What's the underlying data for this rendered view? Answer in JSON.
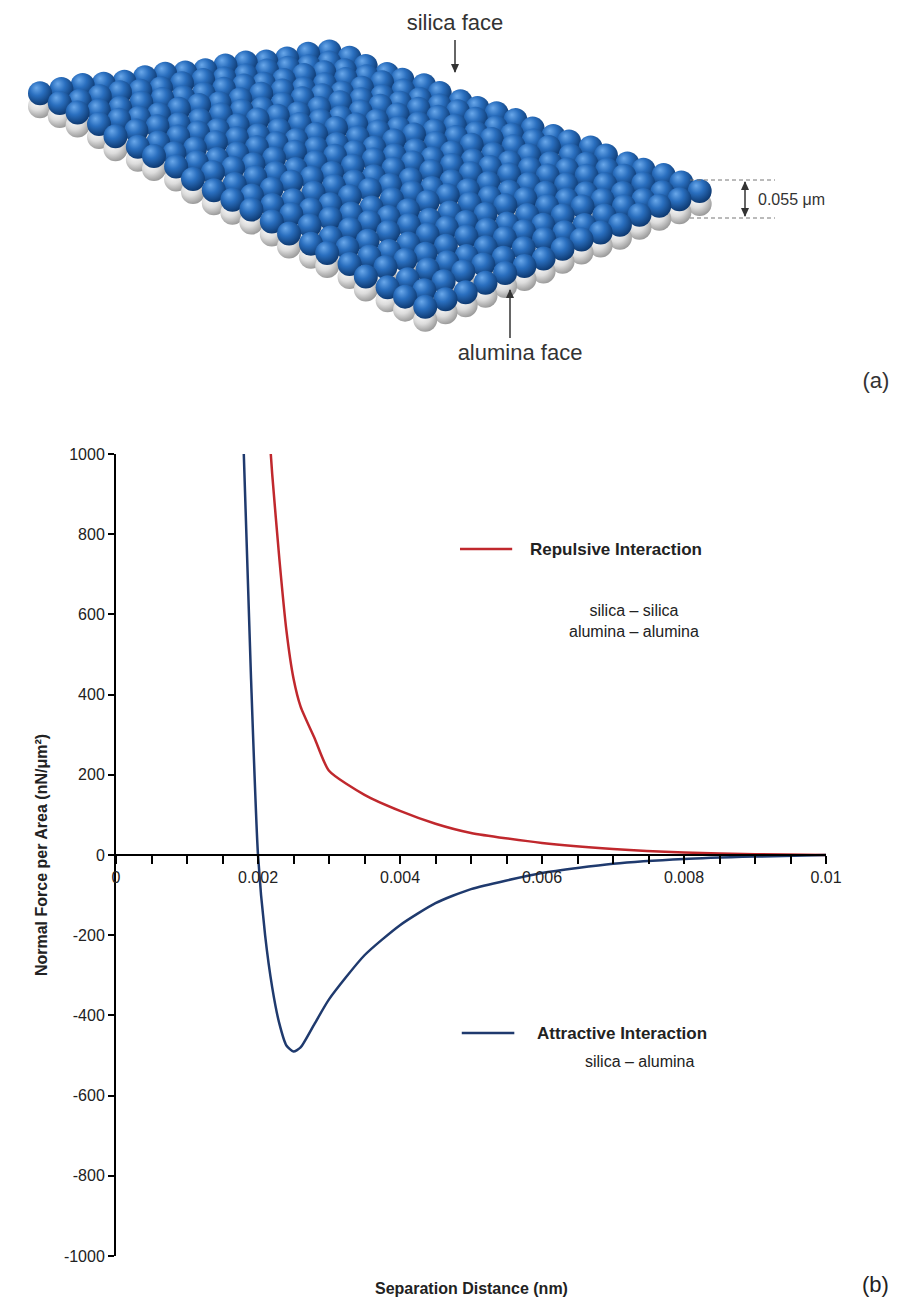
{
  "diagram": {
    "letter": "(a)",
    "top_label": "silica face",
    "bottom_label": "alumina face",
    "thickness_label": "0.055 μm"
  },
  "chart_data": {
    "type": "line",
    "letter": "(b)",
    "x_label": "Separation Distance (nm)",
    "y_label": "Normal Force per Area (nN/μm²)",
    "xlim": [
      0,
      0.01
    ],
    "xticks": [
      0,
      0.002,
      0.004,
      0.006,
      0.008,
      0.01
    ],
    "ylim": [
      -1000,
      1000
    ],
    "yticks": [
      -1000,
      -800,
      -600,
      -400,
      -200,
      0,
      200,
      400,
      600,
      800,
      1000
    ],
    "grid": false,
    "series": [
      {
        "name": "Repulsive Interaction",
        "description": [
          "silica – silica",
          "alumina – alumina"
        ],
        "color": "#c0282d",
        "x": [
          0.00218,
          0.0022,
          0.0023,
          0.0024,
          0.0025,
          0.0026,
          0.0028,
          0.003,
          0.0035,
          0.004,
          0.0045,
          0.005,
          0.006,
          0.007,
          0.008,
          0.009,
          0.01
        ],
        "values": [
          1000,
          950,
          740,
          560,
          440,
          370,
          290,
          210,
          150,
          110,
          78,
          55,
          30,
          15,
          6,
          2,
          0
        ]
      },
      {
        "name": "Attractive Interaction",
        "description": [
          "silica – alumina"
        ],
        "color": "#1f3a6e",
        "x": [
          0.0018,
          0.0019,
          0.002,
          0.0021,
          0.0022,
          0.0023,
          0.0024,
          0.0025,
          0.0026,
          0.0028,
          0.003,
          0.0035,
          0.004,
          0.0045,
          0.005,
          0.006,
          0.007,
          0.008,
          0.009,
          0.01
        ],
        "values": [
          1000,
          450,
          0,
          -200,
          -330,
          -420,
          -475,
          -490,
          -480,
          -420,
          -360,
          -250,
          -175,
          -120,
          -85,
          -45,
          -22,
          -10,
          -4,
          0
        ]
      }
    ]
  }
}
